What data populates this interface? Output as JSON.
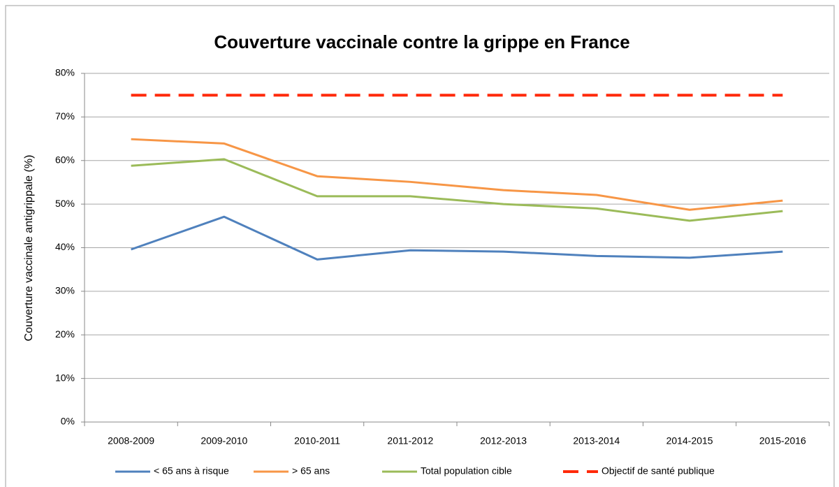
{
  "chart_data": {
    "type": "line",
    "title": "Couverture vaccinale contre la grippe en France",
    "y_label": "Couverture vaccinale antigrippale (%)",
    "categories": [
      "2008-2009",
      "2009-2010",
      "2010-2011",
      "2011-2012",
      "2012-2013",
      "2013-2014",
      "2014-2015",
      "2015-2016"
    ],
    "series": [
      {
        "name": "< 65 ans à risque",
        "color": "#4f81bd",
        "values": [
          39.6,
          47.1,
          37.3,
          39.4,
          39.1,
          38.1,
          37.7,
          39.1
        ]
      },
      {
        "name": "> 65 ans",
        "color": "#f79646",
        "values": [
          64.9,
          63.9,
          56.4,
          55.1,
          53.2,
          52.1,
          48.7,
          50.8
        ]
      },
      {
        "name": "Total population cible",
        "color": "#9bbb59",
        "values": [
          58.8,
          60.3,
          51.8,
          51.8,
          50.0,
          49.0,
          46.2,
          48.4
        ]
      },
      {
        "name": "Objectif de santé publique",
        "color": "#ff2a0a",
        "line_style": "dashed",
        "values": [
          75,
          75,
          75,
          75,
          75,
          75,
          75,
          75
        ]
      }
    ],
    "ylim": [
      0,
      80
    ],
    "yticks": [
      {
        "value": 0,
        "label": "0%"
      },
      {
        "value": 10,
        "label": "10%"
      },
      {
        "value": 20,
        "label": "20%"
      },
      {
        "value": 30,
        "label": "30%"
      },
      {
        "value": 40,
        "label": "40%"
      },
      {
        "value": 50,
        "label": "50%"
      },
      {
        "value": 60,
        "label": "60%"
      },
      {
        "value": 70,
        "label": "70%"
      },
      {
        "value": 80,
        "label": "80%"
      }
    ],
    "grid": true,
    "legend": "bottom"
  }
}
